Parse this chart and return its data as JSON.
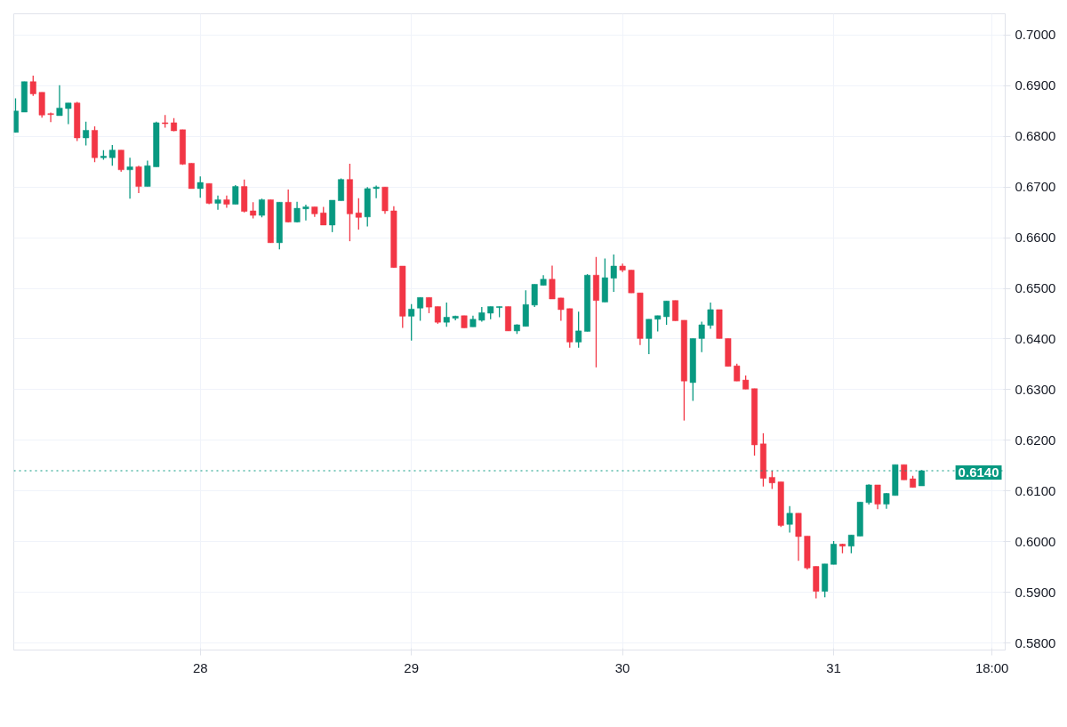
{
  "chart_data": {
    "type": "candlestick",
    "categories": [
      null,
      null,
      null,
      null,
      null,
      null,
      null,
      null,
      null,
      null,
      null,
      null,
      null,
      null,
      null,
      null,
      null,
      null,
      null,
      null,
      null,
      "28",
      null,
      null,
      null,
      null,
      null,
      null,
      null,
      null,
      null,
      null,
      null,
      null,
      null,
      null,
      null,
      null,
      null,
      null,
      null,
      null,
      null,
      null,
      null,
      "29",
      null,
      null,
      null,
      null,
      null,
      null,
      null,
      null,
      null,
      null,
      null,
      null,
      null,
      null,
      null,
      null,
      null,
      null,
      null,
      null,
      null,
      null,
      null,
      "30",
      null,
      null,
      null,
      null,
      null,
      null,
      null,
      null,
      null,
      null,
      null,
      null,
      null,
      null,
      null,
      null,
      null,
      null,
      null,
      null,
      null,
      null,
      null,
      "31",
      null,
      null,
      null,
      null,
      null,
      null,
      null,
      null,
      null,
      null,
      null,
      null,
      null,
      null,
      null,
      null,
      null,
      "18:00"
    ],
    "ohlc": [
      [
        0.6808,
        0.6875,
        0.6808,
        0.685
      ],
      [
        0.6848,
        0.6908,
        0.6848,
        0.6908
      ],
      [
        0.6908,
        0.692,
        0.688,
        0.6884
      ],
      [
        0.6887,
        0.6887,
        0.6837,
        0.6842
      ],
      [
        0.6845,
        0.6847,
        0.6828,
        0.6843
      ],
      [
        0.6841,
        0.6901,
        0.6841,
        0.6856
      ],
      [
        0.6855,
        0.6866,
        0.6824,
        0.6866
      ],
      [
        0.6866,
        0.6868,
        0.6791,
        0.6797
      ],
      [
        0.6797,
        0.6829,
        0.6782,
        0.6812
      ],
      [
        0.6812,
        0.682,
        0.6749,
        0.6758
      ],
      [
        0.6758,
        0.6773,
        0.6754,
        0.6761
      ],
      [
        0.6758,
        0.6783,
        0.6742,
        0.6773
      ],
      [
        0.6773,
        0.6773,
        0.673,
        0.6734
      ],
      [
        0.6734,
        0.6758,
        0.6677,
        0.674
      ],
      [
        0.674,
        0.6742,
        0.6688,
        0.6701
      ],
      [
        0.6701,
        0.6752,
        0.6701,
        0.6742
      ],
      [
        0.674,
        0.6829,
        0.674,
        0.6827
      ],
      [
        0.6827,
        0.6842,
        0.6817,
        0.6825
      ],
      [
        0.6827,
        0.6836,
        0.681,
        0.6811
      ],
      [
        0.6813,
        0.6813,
        0.6744,
        0.6745
      ],
      [
        0.6747,
        0.6747,
        0.6697,
        0.6697
      ],
      [
        0.6697,
        0.6721,
        0.6679,
        0.6709
      ],
      [
        0.6707,
        0.6707,
        0.6666,
        0.6668
      ],
      [
        0.6668,
        0.6683,
        0.6655,
        0.6675
      ],
      [
        0.6675,
        0.6683,
        0.6659,
        0.6666
      ],
      [
        0.6666,
        0.6704,
        0.6666,
        0.6701
      ],
      [
        0.6701,
        0.6715,
        0.665,
        0.6652
      ],
      [
        0.6653,
        0.667,
        0.6638,
        0.6644
      ],
      [
        0.6644,
        0.6677,
        0.664,
        0.6675
      ],
      [
        0.6675,
        0.6675,
        0.659,
        0.659
      ],
      [
        0.659,
        0.667,
        0.6577,
        0.667
      ],
      [
        0.667,
        0.6695,
        0.663,
        0.6631
      ],
      [
        0.6631,
        0.6671,
        0.663,
        0.6658
      ],
      [
        0.6657,
        0.6665,
        0.6634,
        0.6661
      ],
      [
        0.6661,
        0.6661,
        0.6641,
        0.6647
      ],
      [
        0.6649,
        0.6661,
        0.6625,
        0.6625
      ],
      [
        0.6625,
        0.6674,
        0.6611,
        0.6674
      ],
      [
        0.6673,
        0.6717,
        0.6673,
        0.6715
      ],
      [
        0.6715,
        0.6746,
        0.6593,
        0.6647
      ],
      [
        0.6649,
        0.6678,
        0.6616,
        0.664
      ],
      [
        0.6641,
        0.67,
        0.6622,
        0.6697
      ],
      [
        0.6697,
        0.6703,
        0.6678,
        0.67
      ],
      [
        0.67,
        0.67,
        0.6647,
        0.6653
      ],
      [
        0.6653,
        0.6662,
        0.6541,
        0.6541
      ],
      [
        0.6544,
        0.6544,
        0.6422,
        0.6445
      ],
      [
        0.6445,
        0.6469,
        0.6397,
        0.6459
      ],
      [
        0.6461,
        0.6482,
        0.6436,
        0.6482
      ],
      [
        0.6482,
        0.6482,
        0.6451,
        0.6463
      ],
      [
        0.6464,
        0.6464,
        0.643,
        0.6433
      ],
      [
        0.6433,
        0.6472,
        0.6424,
        0.6443
      ],
      [
        0.6441,
        0.6446,
        0.6437,
        0.6445
      ],
      [
        0.6446,
        0.6446,
        0.6422,
        0.6422
      ],
      [
        0.6424,
        0.6446,
        0.6424,
        0.6439
      ],
      [
        0.6437,
        0.6463,
        0.6434,
        0.6452
      ],
      [
        0.6451,
        0.6464,
        0.6439,
        0.6464
      ],
      [
        0.6462,
        0.6464,
        0.6443,
        0.6464
      ],
      [
        0.6464,
        0.6464,
        0.6416,
        0.6416
      ],
      [
        0.6416,
        0.6429,
        0.641,
        0.6428
      ],
      [
        0.6425,
        0.6496,
        0.6425,
        0.6468
      ],
      [
        0.6467,
        0.6508,
        0.6463,
        0.6508
      ],
      [
        0.6506,
        0.6526,
        0.6506,
        0.6518
      ],
      [
        0.6518,
        0.6545,
        0.6479,
        0.6479
      ],
      [
        0.6481,
        0.6481,
        0.6436,
        0.6458
      ],
      [
        0.646,
        0.646,
        0.6383,
        0.6394
      ],
      [
        0.6394,
        0.6454,
        0.6383,
        0.6416
      ],
      [
        0.6415,
        0.6528,
        0.6415,
        0.6526
      ],
      [
        0.6526,
        0.6562,
        0.6344,
        0.6476
      ],
      [
        0.6473,
        0.6559,
        0.6473,
        0.6521
      ],
      [
        0.652,
        0.6567,
        0.6493,
        0.6544
      ],
      [
        0.6544,
        0.6549,
        0.6532,
        0.6536
      ],
      [
        0.6536,
        0.6536,
        0.6491,
        0.6491
      ],
      [
        0.6491,
        0.6491,
        0.6388,
        0.6401
      ],
      [
        0.6401,
        0.6439,
        0.637,
        0.6439
      ],
      [
        0.6439,
        0.6446,
        0.6415,
        0.6446
      ],
      [
        0.6444,
        0.6475,
        0.6428,
        0.6475
      ],
      [
        0.6476,
        0.6476,
        0.6436,
        0.6436
      ],
      [
        0.6437,
        0.6437,
        0.6239,
        0.6317
      ],
      [
        0.6314,
        0.6401,
        0.6278,
        0.6401
      ],
      [
        0.6401,
        0.6434,
        0.6374,
        0.6428
      ],
      [
        0.6427,
        0.6472,
        0.642,
        0.6458
      ],
      [
        0.6458,
        0.6458,
        0.6401,
        0.6401
      ],
      [
        0.6401,
        0.6401,
        0.6346,
        0.6346
      ],
      [
        0.6347,
        0.6351,
        0.6317,
        0.6317
      ],
      [
        0.6319,
        0.6328,
        0.6301,
        0.6301
      ],
      [
        0.6302,
        0.6302,
        0.617,
        0.6191
      ],
      [
        0.6193,
        0.6214,
        0.6109,
        0.6125
      ],
      [
        0.6127,
        0.614,
        0.6104,
        0.6116
      ],
      [
        0.6118,
        0.6118,
        0.6029,
        0.6032
      ],
      [
        0.6034,
        0.607,
        0.6018,
        0.6056
      ],
      [
        0.6056,
        0.6056,
        0.5962,
        0.601
      ],
      [
        0.6011,
        0.6011,
        0.5945,
        0.5948
      ],
      [
        0.5951,
        0.5951,
        0.5888,
        0.5902
      ],
      [
        0.5902,
        0.5956,
        0.589,
        0.5956
      ],
      [
        0.5955,
        0.6001,
        0.5955,
        0.5995
      ],
      [
        0.5995,
        0.5996,
        0.5977,
        0.5991
      ],
      [
        0.5991,
        0.6013,
        0.5977,
        0.6013
      ],
      [
        0.6011,
        0.6078,
        0.6011,
        0.6078
      ],
      [
        0.6077,
        0.6113,
        0.6073,
        0.6112
      ],
      [
        0.6112,
        0.6112,
        0.6064,
        0.6074
      ],
      [
        0.6074,
        0.6096,
        0.6065,
        0.6095
      ],
      [
        0.6091,
        0.6152,
        0.6091,
        0.6152
      ],
      [
        0.6152,
        0.6152,
        0.6122,
        0.6122
      ],
      [
        0.6124,
        0.613,
        0.6107,
        0.6107
      ],
      [
        0.611,
        0.6141,
        0.611,
        0.614
      ],
      null,
      null,
      null,
      null,
      null,
      null,
      null,
      null
    ],
    "colors": [
      "#089981",
      "#089981",
      "#f23645",
      "#f23645",
      "#f23645",
      "#089981",
      "#089981",
      "#f23645",
      "#089981",
      "#f23645",
      "#089981",
      "#089981",
      "#f23645",
      "#089981",
      "#f23645",
      "#089981",
      "#089981",
      "#f23645",
      "#f23645",
      "#f23645",
      "#f23645",
      "#089981",
      "#f23645",
      "#089981",
      "#f23645",
      "#089981",
      "#f23645",
      "#f23645",
      "#089981",
      "#f23645",
      "#089981",
      "#f23645",
      "#089981",
      "#089981",
      "#f23645",
      "#f23645",
      "#089981",
      "#089981",
      "#f23645",
      "#f23645",
      "#089981",
      "#089981",
      "#f23645",
      "#f23645",
      "#f23645",
      "#089981",
      "#089981",
      "#f23645",
      "#f23645",
      "#089981",
      "#089981",
      "#f23645",
      "#089981",
      "#089981",
      "#089981",
      "#089981",
      "#f23645",
      "#089981",
      "#089981",
      "#089981",
      "#089981",
      "#f23645",
      "#f23645",
      "#f23645",
      "#089981",
      "#089981",
      "#f23645",
      "#089981",
      "#089981",
      "#f23645",
      "#f23645",
      "#f23645",
      "#089981",
      "#089981",
      "#089981",
      "#f23645",
      "#f23645",
      "#089981",
      "#089981",
      "#089981",
      "#f23645",
      "#f23645",
      "#f23645",
      "#f23645",
      "#f23645",
      "#f23645",
      "#f23645",
      "#f23645",
      "#089981",
      "#f23645",
      "#f23645",
      "#f23645",
      "#089981",
      "#089981",
      "#f23645",
      "#089981",
      "#089981",
      "#089981",
      "#f23645",
      "#089981",
      "#089981",
      "#f23645",
      "#f23645",
      "#089981",
      null,
      null,
      null,
      null,
      null,
      null,
      null,
      null
    ],
    "ylim": [
      0.5786,
      0.7042
    ],
    "yticks": [
      {
        "value": 0.58,
        "label": "0.5800"
      },
      {
        "value": 0.59,
        "label": "0.5900"
      },
      {
        "value": 0.6,
        "label": "0.6000"
      },
      {
        "value": 0.61,
        "label": "0.6100"
      },
      {
        "value": 0.62,
        "label": "0.6200"
      },
      {
        "value": 0.63,
        "label": "0.6300"
      },
      {
        "value": 0.64,
        "label": "0.6400"
      },
      {
        "value": 0.65,
        "label": "0.6500"
      },
      {
        "value": 0.66,
        "label": "0.6600"
      },
      {
        "value": 0.67,
        "label": "0.6700"
      },
      {
        "value": 0.68,
        "label": "0.6800"
      },
      {
        "value": 0.69,
        "label": "0.6900"
      },
      {
        "value": 0.7,
        "label": "0.7000"
      }
    ],
    "ref_lines": [
      {
        "axis": "y",
        "value": 0.614,
        "label": "0.6140",
        "color": "#089981",
        "line_style": "dotted"
      }
    ],
    "grid": true
  }
}
